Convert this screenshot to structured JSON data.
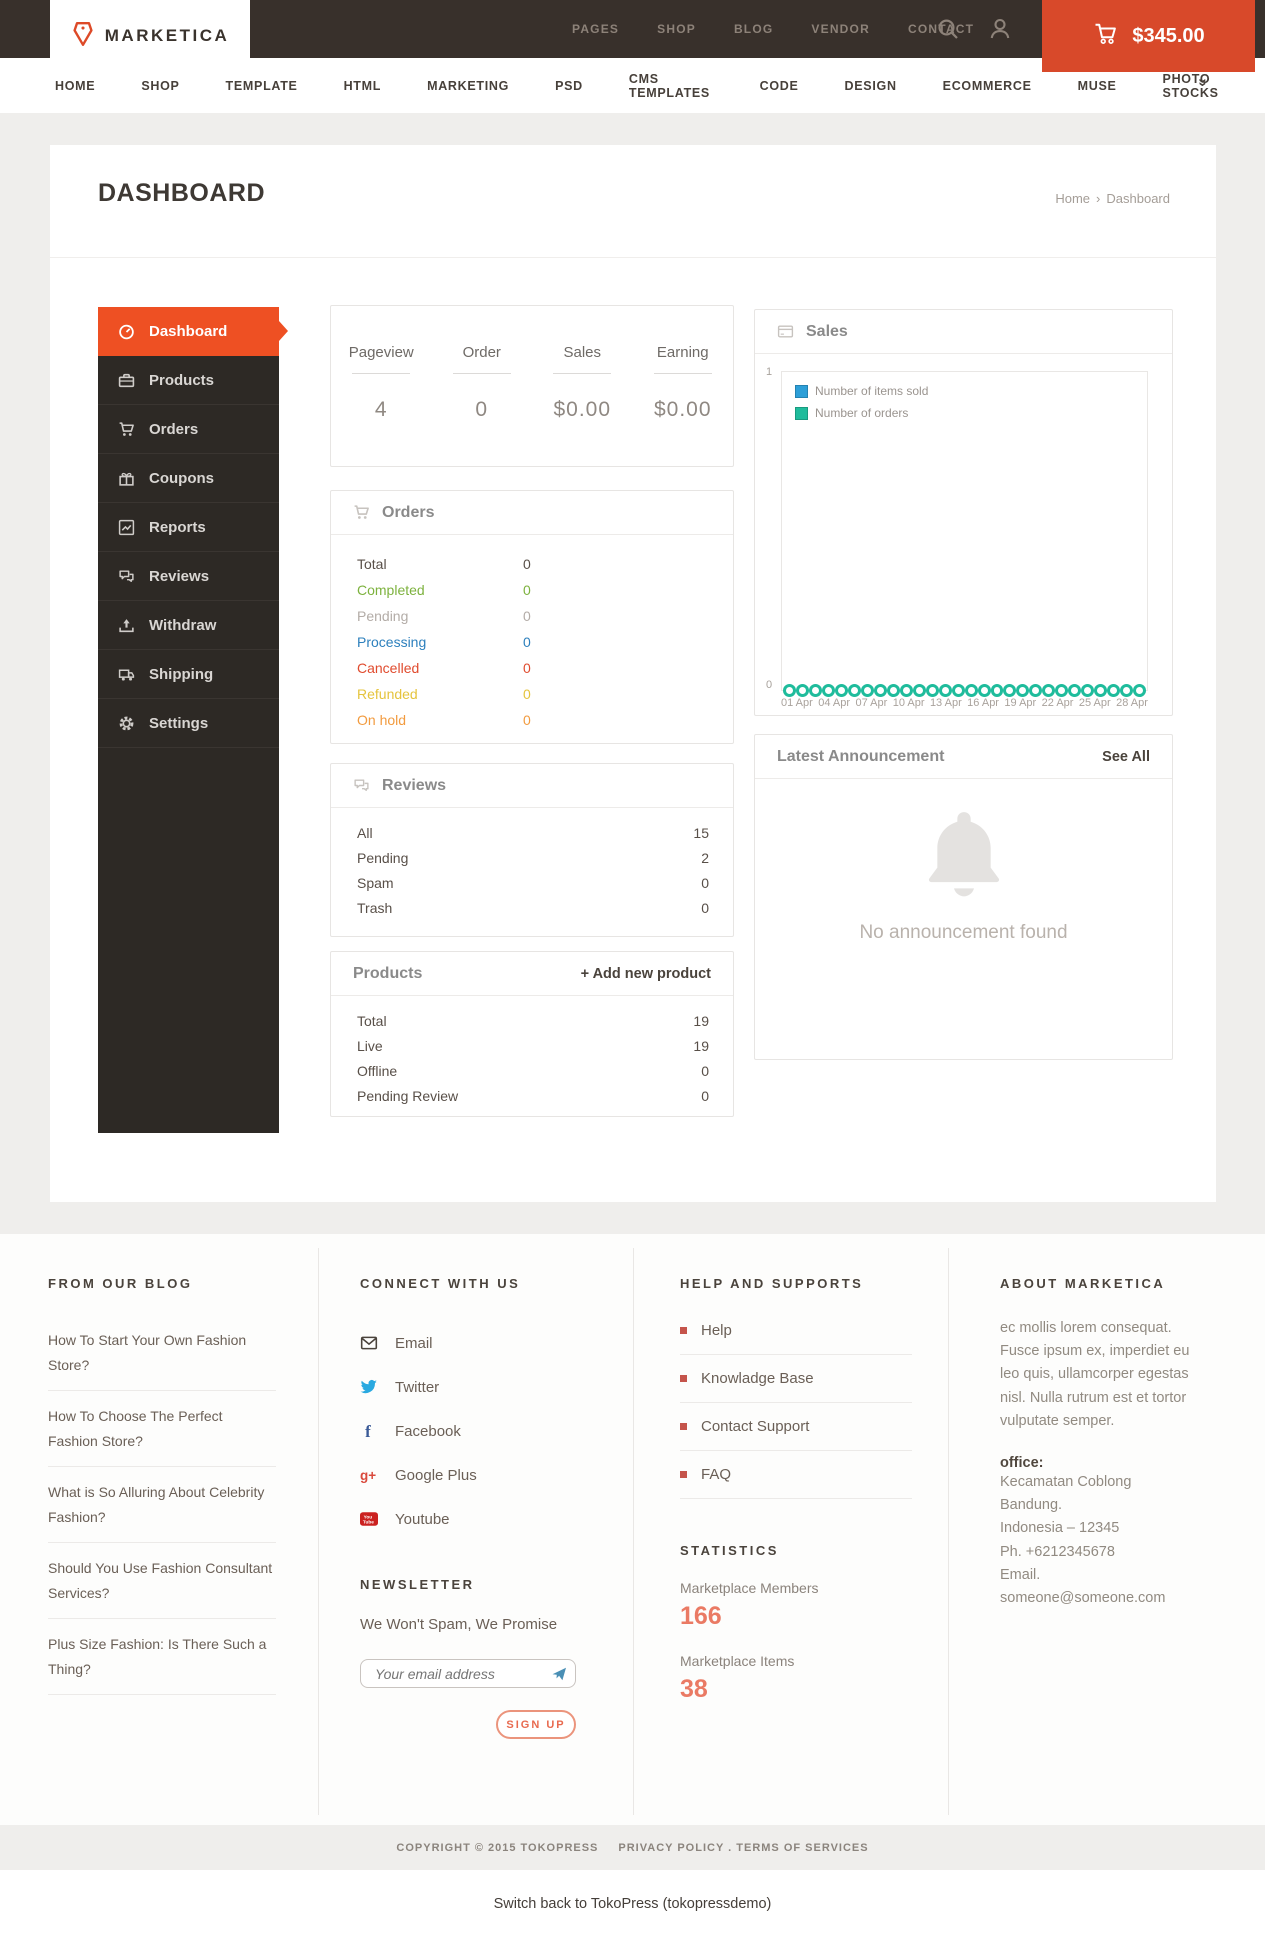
{
  "brand": {
    "name": "MARKETICA"
  },
  "topbar": {
    "nav": [
      "PAGES",
      "SHOP",
      "BLOG",
      "VENDOR",
      "CONTACT"
    ],
    "cart_total": "$345.00",
    "accent_color": "#d8492a"
  },
  "mainnav": {
    "items": [
      "HOME",
      "SHOP",
      "TEMPLATE",
      "HTML",
      "MARKETING",
      "PSD",
      "CMS TEMPLATES",
      "CODE",
      "DESIGN",
      "ECOMMERCE",
      "MUSE",
      "PHOTO STOCKS"
    ],
    "more": "»"
  },
  "page": {
    "title": "DASHBOARD",
    "breadcrumb_home": "Home",
    "breadcrumb_sep": "›",
    "breadcrumb_current": "Dashboard"
  },
  "sidebar": [
    {
      "label": "Dashboard",
      "icon": "gauge-icon",
      "active": true
    },
    {
      "label": "Products",
      "icon": "briefcase-icon",
      "active": false
    },
    {
      "label": "Orders",
      "icon": "cart-icon",
      "active": false
    },
    {
      "label": "Coupons",
      "icon": "gift-icon",
      "active": false
    },
    {
      "label": "Reports",
      "icon": "chart-icon",
      "active": false
    },
    {
      "label": "Reviews",
      "icon": "comments-icon",
      "active": false
    },
    {
      "label": "Withdraw",
      "icon": "upload-icon",
      "active": false
    },
    {
      "label": "Shipping",
      "icon": "truck-icon",
      "active": false
    },
    {
      "label": "Settings",
      "icon": "gear-icon",
      "active": false
    }
  ],
  "sidebar_active_color": "#ee5023",
  "stats": [
    {
      "label": "Pageview",
      "value": "4"
    },
    {
      "label": "Order",
      "value": "0"
    },
    {
      "label": "Sales",
      "value": "$0.00"
    },
    {
      "label": "Earning",
      "value": "$0.00"
    }
  ],
  "orders_panel": {
    "title": "Orders",
    "rows": [
      {
        "label": "Total",
        "value": "0",
        "color": "#584f48"
      },
      {
        "label": "Completed",
        "value": "0",
        "color": "#7db23e"
      },
      {
        "label": "Pending",
        "value": "0",
        "color": "#b3aca7"
      },
      {
        "label": "Processing",
        "value": "0",
        "color": "#2d80bd"
      },
      {
        "label": "Cancelled",
        "value": "0",
        "color": "#e04b2e"
      },
      {
        "label": "Refunded",
        "value": "0",
        "color": "#e5c43d"
      },
      {
        "label": "On hold",
        "value": "0",
        "color": "#f29b3f"
      }
    ]
  },
  "reviews_panel": {
    "title": "Reviews",
    "rows": [
      {
        "label": "All",
        "value": "15"
      },
      {
        "label": "Pending",
        "value": "2"
      },
      {
        "label": "Spam",
        "value": "0"
      },
      {
        "label": "Trash",
        "value": "0"
      }
    ]
  },
  "products_panel": {
    "title": "Products",
    "action": "+ Add new product",
    "rows": [
      {
        "label": "Total",
        "value": "19"
      },
      {
        "label": "Live",
        "value": "19"
      },
      {
        "label": "Offline",
        "value": "0"
      },
      {
        "label": "Pending Review",
        "value": "0"
      }
    ]
  },
  "chart_data": {
    "type": "line",
    "title": "Sales",
    "x_ticks": [
      "01 Apr",
      "04 Apr",
      "07 Apr",
      "10 Apr",
      "13 Apr",
      "16 Apr",
      "19 Apr",
      "22 Apr",
      "25 Apr",
      "28 Apr"
    ],
    "yticks": [
      "1",
      "0"
    ],
    "ylim": [
      0,
      1
    ],
    "grid": false,
    "legend_position": "top-left",
    "series": [
      {
        "name": "Number of items sold",
        "color": "#2d9fd8",
        "values": [
          0,
          0,
          0,
          0,
          0,
          0,
          0,
          0,
          0,
          0,
          0,
          0,
          0,
          0,
          0,
          0,
          0,
          0,
          0,
          0,
          0,
          0,
          0,
          0,
          0,
          0,
          0,
          0
        ]
      },
      {
        "name": "Number of orders",
        "color": "#1fbc9c",
        "values": [
          0,
          0,
          0,
          0,
          0,
          0,
          0,
          0,
          0,
          0,
          0,
          0,
          0,
          0,
          0,
          0,
          0,
          0,
          0,
          0,
          0,
          0,
          0,
          0,
          0,
          0,
          0,
          0
        ]
      }
    ]
  },
  "announcement_panel": {
    "title": "Latest Announcement",
    "action": "See All",
    "empty_text": "No announcement found"
  },
  "footer": {
    "blog": {
      "heading": "FROM OUR BLOG",
      "posts": [
        "How To Start Your Own Fashion Store?",
        "How To Choose The Perfect Fashion Store?",
        "What is So Alluring About Celebrity Fashion?",
        "Should You Use Fashion Consultant Services?",
        "Plus Size Fashion: Is There Such a Thing?"
      ]
    },
    "connect": {
      "heading": "CONNECT WITH US",
      "links": [
        {
          "label": "Email",
          "icon": "email-icon"
        },
        {
          "label": "Twitter",
          "icon": "twitter-icon"
        },
        {
          "label": "Facebook",
          "icon": "facebook-icon"
        },
        {
          "label": "Google Plus",
          "icon": "google-plus-icon"
        },
        {
          "label": "Youtube",
          "icon": "youtube-icon"
        }
      ]
    },
    "newsletter": {
      "heading": "NEWSLETTER",
      "tagline": "We Won't Spam, We Promise",
      "placeholder": "Your email address",
      "button": "SIGN UP"
    },
    "help": {
      "heading": "HELP AND SUPPORTS",
      "links": [
        "Help",
        "Knowladge Base",
        "Contact Support",
        "FAQ"
      ]
    },
    "statistics": {
      "heading": "STATISTICS",
      "items": [
        {
          "label": "Marketplace Members",
          "value": "166"
        },
        {
          "label": "Marketplace Items",
          "value": "38"
        }
      ],
      "number_color": "#ea7a64"
    },
    "about": {
      "heading": "ABOUT MARKETICA",
      "text": "ec mollis lorem consequat. Fusce ipsum ex, imperdiet eu leo quis, ullamcorper egestas nisl. Nulla rutrum est et tortor vulputate semper.",
      "office_label": "office:",
      "address_lines": [
        "Kecamatan Coblong",
        "Bandung.",
        "Indonesia – 12345",
        "Ph. +6212345678",
        "Email. someone@someone.com"
      ]
    }
  },
  "legal": {
    "copyright": "COPYRIGHT © 2015 TOKOPRESS",
    "links": "PRIVACY POLICY . TERMS OF SERVICES"
  },
  "adminbar": {
    "text": "Switch back to TokoPress (tokopressdemo)"
  }
}
